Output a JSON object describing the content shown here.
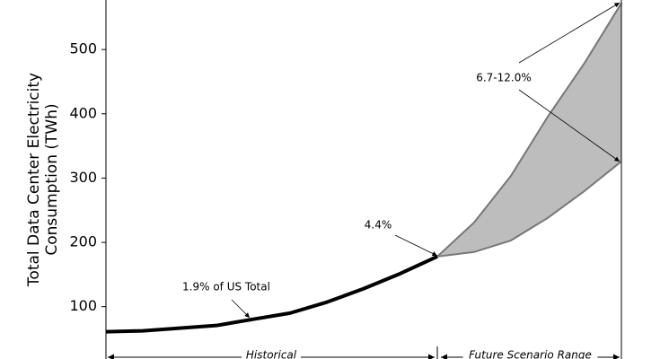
{
  "chart_data": {
    "type": "line",
    "y_label": [
      "Total Data Center Electricity",
      "Consumption (TWh)"
    ],
    "categories": [
      null,
      null,
      null,
      null,
      null,
      null,
      null,
      null,
      null,
      null,
      null,
      null,
      null,
      null,
      null
    ],
    "series": [
      {
        "color": "#000000",
        "values": [
          61,
          62.4,
          66.6,
          70.7,
          80.5,
          90,
          107,
          128,
          151.6,
          178,
          null,
          null,
          null,
          null,
          null
        ]
      }
    ],
    "band": {
      "color": "#bdbdbd",
      "upper": [
        null,
        null,
        null,
        null,
        null,
        null,
        null,
        null,
        null,
        178,
        231,
        303.5,
        395.5,
        479,
        572
      ],
      "lower": [
        null,
        null,
        null,
        null,
        null,
        null,
        null,
        null,
        null,
        178,
        185,
        203,
        238,
        280,
        326
      ]
    },
    "ylim": [
      20,
      577
    ],
    "yticks": [
      100,
      200,
      300,
      400,
      500
    ],
    "annotations": [
      "1.9% of US Total",
      "4.4%",
      "6.7-12.0%"
    ],
    "period_labels": [
      "Historical",
      "Future Scenario Range"
    ]
  }
}
